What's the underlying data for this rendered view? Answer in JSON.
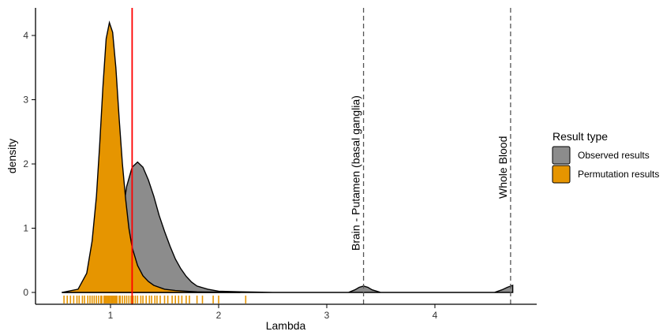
{
  "chart_data": {
    "type": "area",
    "xlabel": "Lambda",
    "ylabel": "density",
    "xlim": [
      0.5,
      4.72
    ],
    "ylim": [
      -0.2,
      4.4
    ],
    "x_ticks": [
      1,
      2,
      3,
      4
    ],
    "y_ticks": [
      0,
      1,
      2,
      3,
      4
    ],
    "grid": false,
    "legend": {
      "title": "Result type",
      "placement": "right",
      "entries": [
        {
          "name": "Observed results",
          "color": "#8c8c8c"
        },
        {
          "name": "Permutation results",
          "color": "#e69500"
        }
      ]
    },
    "series": [
      {
        "name": "Observed results",
        "color": "#8c8c8c",
        "x": [
          0.55,
          0.95,
          1.05,
          1.1,
          1.15,
          1.2,
          1.25,
          1.3,
          1.35,
          1.4,
          1.45,
          1.5,
          1.55,
          1.6,
          1.65,
          1.7,
          1.75,
          1.8,
          1.9,
          2.0,
          2.2,
          2.5,
          3.0,
          3.2,
          3.26,
          3.3,
          3.34,
          3.38,
          3.42,
          3.5,
          3.8,
          4.2,
          4.55,
          4.62,
          4.67,
          4.72
        ],
        "values": [
          0,
          0.05,
          0.5,
          1.1,
          1.65,
          1.95,
          2.03,
          1.95,
          1.75,
          1.5,
          1.2,
          0.95,
          0.72,
          0.52,
          0.37,
          0.25,
          0.16,
          0.1,
          0.05,
          0.02,
          0.01,
          0,
          0,
          0,
          0.04,
          0.08,
          0.1,
          0.08,
          0.04,
          0,
          0,
          0,
          0,
          0.04,
          0.08,
          0.11
        ]
      },
      {
        "name": "Permutation results",
        "color": "#e69500",
        "x": [
          0.55,
          0.7,
          0.78,
          0.83,
          0.87,
          0.9,
          0.93,
          0.96,
          0.99,
          1.02,
          1.05,
          1.08,
          1.11,
          1.14,
          1.17,
          1.2,
          1.25,
          1.3,
          1.35,
          1.4,
          1.5,
          1.6,
          1.7,
          1.8,
          2.2
        ],
        "values": [
          0,
          0.05,
          0.3,
          0.8,
          1.5,
          2.3,
          3.2,
          3.95,
          4.2,
          4.05,
          3.5,
          2.7,
          2.0,
          1.45,
          1.0,
          0.7,
          0.42,
          0.26,
          0.17,
          0.11,
          0.05,
          0.03,
          0.02,
          0.01,
          0
        ]
      }
    ],
    "reference_lines": [
      {
        "x": 1.2,
        "color": "#ff0000",
        "style": "solid"
      },
      {
        "x": 3.34,
        "color": "#555555",
        "style": "dashed",
        "label": "Brain - Putamen (basal ganglia)"
      },
      {
        "x": 4.7,
        "color": "#555555",
        "style": "dashed",
        "label": "Whole Blood"
      }
    ],
    "rug": {
      "series": "Permutation results",
      "color": "#e69500",
      "x": [
        0.57,
        0.6,
        0.63,
        0.66,
        0.69,
        0.71,
        0.74,
        0.76,
        0.79,
        0.81,
        0.83,
        0.85,
        0.87,
        0.89,
        0.91,
        0.92,
        0.94,
        0.95,
        0.96,
        0.97,
        0.98,
        0.99,
        1.0,
        1.01,
        1.02,
        1.03,
        1.04,
        1.05,
        1.06,
        1.08,
        1.09,
        1.11,
        1.13,
        1.15,
        1.17,
        1.19,
        1.21,
        1.23,
        1.25,
        1.28,
        1.3,
        1.33,
        1.36,
        1.38,
        1.41,
        1.43,
        1.46,
        1.5,
        1.53,
        1.57,
        1.6,
        1.63,
        1.66,
        1.7,
        1.73,
        1.8,
        1.85,
        1.95,
        2.0,
        2.25
      ]
    }
  }
}
